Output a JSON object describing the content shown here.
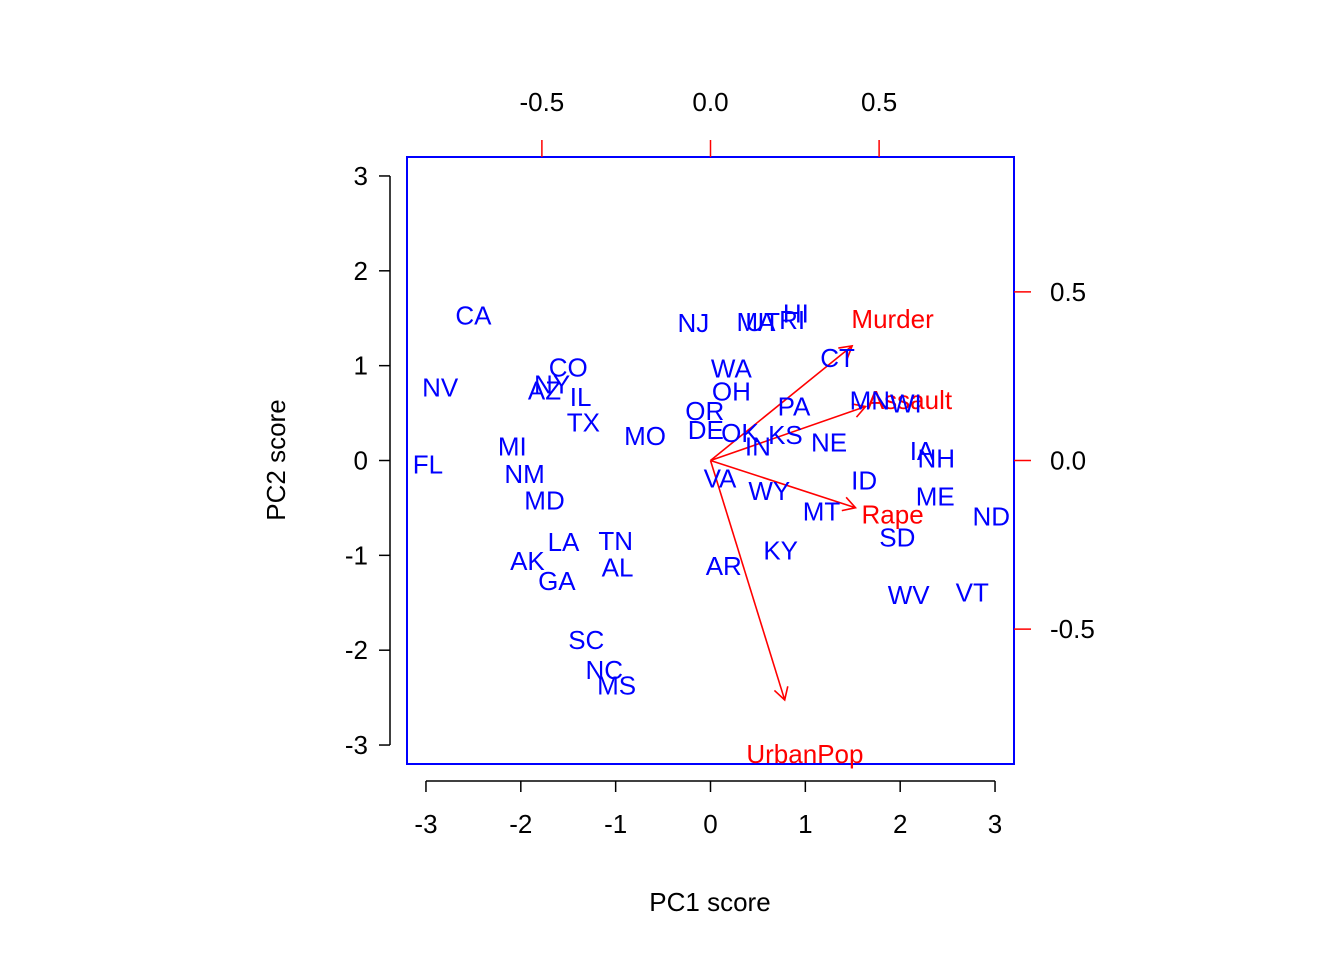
{
  "chart_data": {
    "type": "scatter",
    "subtype": "biplot",
    "xlabel": "PC1 score",
    "ylabel": "PC2 score",
    "xlim": [
      -3.2,
      3.2
    ],
    "ylim": [
      -3.2,
      3.2
    ],
    "x_ticks": [
      "-3",
      "-2",
      "-1",
      "0",
      "1",
      "2",
      "3"
    ],
    "y_ticks": [
      "-3",
      "-2",
      "-1",
      "0",
      "1",
      "2",
      "3"
    ],
    "loading_xlim": [
      -0.9,
      0.9
    ],
    "loading_ylim": [
      -0.9,
      0.9
    ],
    "loading_x_ticks": [
      "-0.5",
      "0.0",
      "0.5"
    ],
    "loading_y_ticks": [
      "-0.5",
      "0.0",
      "0.5"
    ],
    "colors": {
      "points": "#0000ff",
      "loadings": "#ff0000",
      "box": "#0000ff",
      "axes": "#000000"
    },
    "scores": [
      {
        "label": "AL",
        "x": -0.98,
        "y": -1.13
      },
      {
        "label": "AK",
        "x": -1.93,
        "y": -1.06
      },
      {
        "label": "AZ",
        "x": -1.75,
        "y": 0.74
      },
      {
        "label": "AR",
        "x": 0.14,
        "y": -1.11
      },
      {
        "label": "CA",
        "x": -2.5,
        "y": 1.53
      },
      {
        "label": "CO",
        "x": -1.5,
        "y": 0.98
      },
      {
        "label": "CT",
        "x": 1.34,
        "y": 1.08
      },
      {
        "label": "DE",
        "x": -0.05,
        "y": 0.32
      },
      {
        "label": "FL",
        "x": -2.98,
        "y": -0.04
      },
      {
        "label": "GA",
        "x": -1.62,
        "y": -1.27
      },
      {
        "label": "HI",
        "x": 0.9,
        "y": 1.55
      },
      {
        "label": "ID",
        "x": 1.62,
        "y": -0.21
      },
      {
        "label": "IL",
        "x": -1.37,
        "y": 0.67
      },
      {
        "label": "IN",
        "x": 0.5,
        "y": 0.15
      },
      {
        "label": "IA",
        "x": 2.23,
        "y": 0.1
      },
      {
        "label": "KS",
        "x": 0.79,
        "y": 0.27
      },
      {
        "label": "KY",
        "x": 0.74,
        "y": -0.95
      },
      {
        "label": "LA",
        "x": -1.55,
        "y": -0.86
      },
      {
        "label": "ME",
        "x": 2.37,
        "y": -0.38
      },
      {
        "label": "MD",
        "x": -1.75,
        "y": -0.42
      },
      {
        "label": "MA",
        "x": 0.48,
        "y": 1.46
      },
      {
        "label": "MI",
        "x": -2.09,
        "y": 0.15
      },
      {
        "label": "MN",
        "x": 1.68,
        "y": 0.63
      },
      {
        "label": "MS",
        "x": -0.99,
        "y": -2.37
      },
      {
        "label": "MO",
        "x": -0.69,
        "y": 0.26
      },
      {
        "label": "MT",
        "x": 1.17,
        "y": -0.54
      },
      {
        "label": "NE",
        "x": 1.25,
        "y": 0.19
      },
      {
        "label": "NV",
        "x": -2.85,
        "y": 0.77
      },
      {
        "label": "NH",
        "x": 2.38,
        "y": 0.02
      },
      {
        "label": "NJ",
        "x": -0.18,
        "y": 1.45
      },
      {
        "label": "NM",
        "x": -1.96,
        "y": -0.14
      },
      {
        "label": "NY",
        "x": -1.67,
        "y": 0.8
      },
      {
        "label": "NC",
        "x": -1.12,
        "y": -2.21
      },
      {
        "label": "ND",
        "x": 2.96,
        "y": -0.59
      },
      {
        "label": "OH",
        "x": 0.22,
        "y": 0.73
      },
      {
        "label": "OK",
        "x": 0.31,
        "y": 0.29
      },
      {
        "label": "OR",
        "x": -0.06,
        "y": 0.52
      },
      {
        "label": "PA",
        "x": 0.88,
        "y": 0.57
      },
      {
        "label": "RI",
        "x": 0.86,
        "y": 1.48
      },
      {
        "label": "SC",
        "x": -1.31,
        "y": -1.89
      },
      {
        "label": "SD",
        "x": 1.97,
        "y": -0.81
      },
      {
        "label": "TN",
        "x": -1.0,
        "y": -0.85
      },
      {
        "label": "TX",
        "x": -1.34,
        "y": 0.4
      },
      {
        "label": "UT",
        "x": 0.55,
        "y": 1.46
      },
      {
        "label": "VT",
        "x": 2.76,
        "y": -1.39
      },
      {
        "label": "VA",
        "x": 0.1,
        "y": -0.19
      },
      {
        "label": "WA",
        "x": 0.22,
        "y": 0.97
      },
      {
        "label": "WV",
        "x": 2.09,
        "y": -1.42
      },
      {
        "label": "WI",
        "x": 2.06,
        "y": 0.6
      },
      {
        "label": "WY",
        "x": 0.62,
        "y": -0.32
      }
    ],
    "loadings": [
      {
        "label": "Murder",
        "x": 0.42,
        "y": 0.34,
        "label_x": 0.54,
        "label_y": 0.42
      },
      {
        "label": "Assault",
        "x": 0.46,
        "y": 0.16,
        "label_x": 0.59,
        "label_y": 0.18
      },
      {
        "label": "UrbanPop",
        "x": 0.22,
        "y": -0.71,
        "label_x": 0.28,
        "label_y": -0.87
      },
      {
        "label": "Rape",
        "x": 0.43,
        "y": -0.14,
        "label_x": 0.54,
        "label_y": -0.16
      }
    ]
  }
}
